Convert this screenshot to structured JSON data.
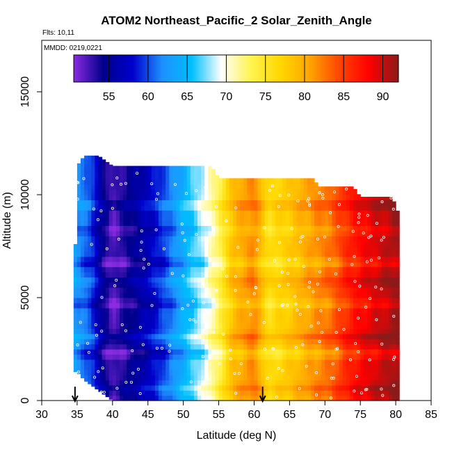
{
  "chart_data": {
    "type": "heatmap",
    "title": "ATOM2 Northeast_Pacific_2 Solar_Zenith_Angle",
    "flights_label": "Flts: 10,11",
    "dates_label": "MMDD: 0219,0221",
    "xlabel": "Latitude (deg N)",
    "ylabel": "Altitude (m)",
    "xlim": [
      30,
      85
    ],
    "ylim": [
      0,
      17500
    ],
    "x_ticks": [
      "30",
      "35",
      "40",
      "45",
      "50",
      "55",
      "60",
      "65",
      "70",
      "75",
      "80",
      "85"
    ],
    "y_ticks": [
      "0",
      "5000",
      "10000",
      "15000"
    ],
    "colorbar": {
      "range": [
        50.5,
        92
      ],
      "ticks": [
        "55",
        "60",
        "65",
        "70",
        "75",
        "80",
        "85",
        "90"
      ],
      "colors": [
        "#8a2be2",
        "#00008b",
        "#0000cd",
        "#1e90ff",
        "#00bfff",
        "#ffffff",
        "#fff44f",
        "#ffd700",
        "#ffa500",
        "#ff4500",
        "#ff0000",
        "#8b1a1a"
      ]
    },
    "arrows_latitude": [
      34.7,
      61.2
    ],
    "altitude_extent": [
      {
        "lat": 34.5,
        "top": 3800,
        "bottom": 1400
      },
      {
        "lat": 35.0,
        "top": 11400,
        "bottom": 1400
      },
      {
        "lat": 36.0,
        "top": 11900,
        "bottom": 1000
      },
      {
        "lat": 38.0,
        "top": 11900,
        "bottom": 500
      },
      {
        "lat": 40.0,
        "top": 11400,
        "bottom": 0
      },
      {
        "lat": 54.0,
        "top": 11400,
        "bottom": 0
      },
      {
        "lat": 55.0,
        "top": 10800,
        "bottom": 0
      },
      {
        "lat": 68.5,
        "top": 10800,
        "bottom": 0
      },
      {
        "lat": 69.0,
        "top": 10400,
        "bottom": 0
      },
      {
        "lat": 74.0,
        "top": 10400,
        "bottom": 0
      },
      {
        "lat": 75.0,
        "top": 9900,
        "bottom": 0
      },
      {
        "lat": 79.5,
        "top": 9900,
        "bottom": 0
      },
      {
        "lat": 80.5,
        "top": 9000,
        "bottom": 0
      }
    ],
    "sza_profile": [
      {
        "lat": 34.5,
        "sza": 63
      },
      {
        "lat": 37.0,
        "sza": 60
      },
      {
        "lat": 38.5,
        "sza": 55
      },
      {
        "lat": 40.0,
        "sza": 52
      },
      {
        "lat": 41.0,
        "sza": 53
      },
      {
        "lat": 45.0,
        "sza": 57
      },
      {
        "lat": 48.0,
        "sza": 61
      },
      {
        "lat": 51.0,
        "sza": 66
      },
      {
        "lat": 53.0,
        "sza": 69
      },
      {
        "lat": 55.0,
        "sza": 73
      },
      {
        "lat": 57.0,
        "sza": 79
      },
      {
        "lat": 60.0,
        "sza": 82
      },
      {
        "lat": 62.0,
        "sza": 76
      },
      {
        "lat": 65.0,
        "sza": 78
      },
      {
        "lat": 68.0,
        "sza": 81
      },
      {
        "lat": 71.0,
        "sza": 83
      },
      {
        "lat": 73.0,
        "sza": 86
      },
      {
        "lat": 75.0,
        "sza": 88
      },
      {
        "lat": 78.0,
        "sza": 90
      },
      {
        "lat": 80.5,
        "sza": 91.5
      }
    ],
    "layer_offsets": [
      {
        "alt": 600,
        "dsza": 2
      },
      {
        "alt": 2300,
        "dsza": -3
      },
      {
        "alt": 3100,
        "dsza": 2.5
      },
      {
        "alt": 4700,
        "dsza": -2.5
      },
      {
        "alt": 5800,
        "dsza": 2
      },
      {
        "alt": 6700,
        "dsza": -3
      },
      {
        "alt": 8300,
        "dsza": -2
      },
      {
        "alt": 9500,
        "dsza": 2.5
      }
    ]
  }
}
